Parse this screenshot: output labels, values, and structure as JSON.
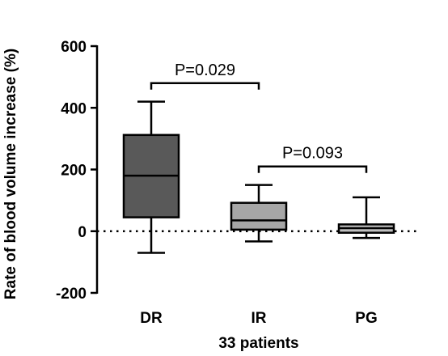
{
  "chart_data": {
    "type": "box",
    "title": "",
    "xlabel": "33 patients",
    "ylabel": "Rate of blood volume increase (%)",
    "ylim": [
      -200,
      600
    ],
    "yticks": [
      -200,
      0,
      200,
      400,
      600
    ],
    "ytick_labels": [
      "-200",
      "0",
      "200",
      "400",
      "600"
    ],
    "categories": [
      "DR",
      "IR",
      "PG"
    ],
    "boxes": [
      {
        "category": "DR",
        "min": -70,
        "q1": 45,
        "median": 180,
        "q3": 312,
        "max": 420,
        "color": "#595959"
      },
      {
        "category": "IR",
        "min": -33,
        "q1": 5,
        "median": 35,
        "q3": 92,
        "max": 150,
        "color": "#a6a6a6"
      },
      {
        "category": "PG",
        "min": -22,
        "q1": -5,
        "median": 10,
        "q3": 22,
        "max": 110,
        "color": "#bfbfbf"
      }
    ],
    "reference_line": {
      "y": 0,
      "style": "dotted"
    },
    "significance": [
      {
        "from": "DR",
        "to": "IR",
        "y": 480,
        "label": "P=0.029"
      },
      {
        "from": "IR",
        "to": "PG",
        "y": 210,
        "label": "P=0.093"
      }
    ],
    "grid": false,
    "legend": "none"
  }
}
